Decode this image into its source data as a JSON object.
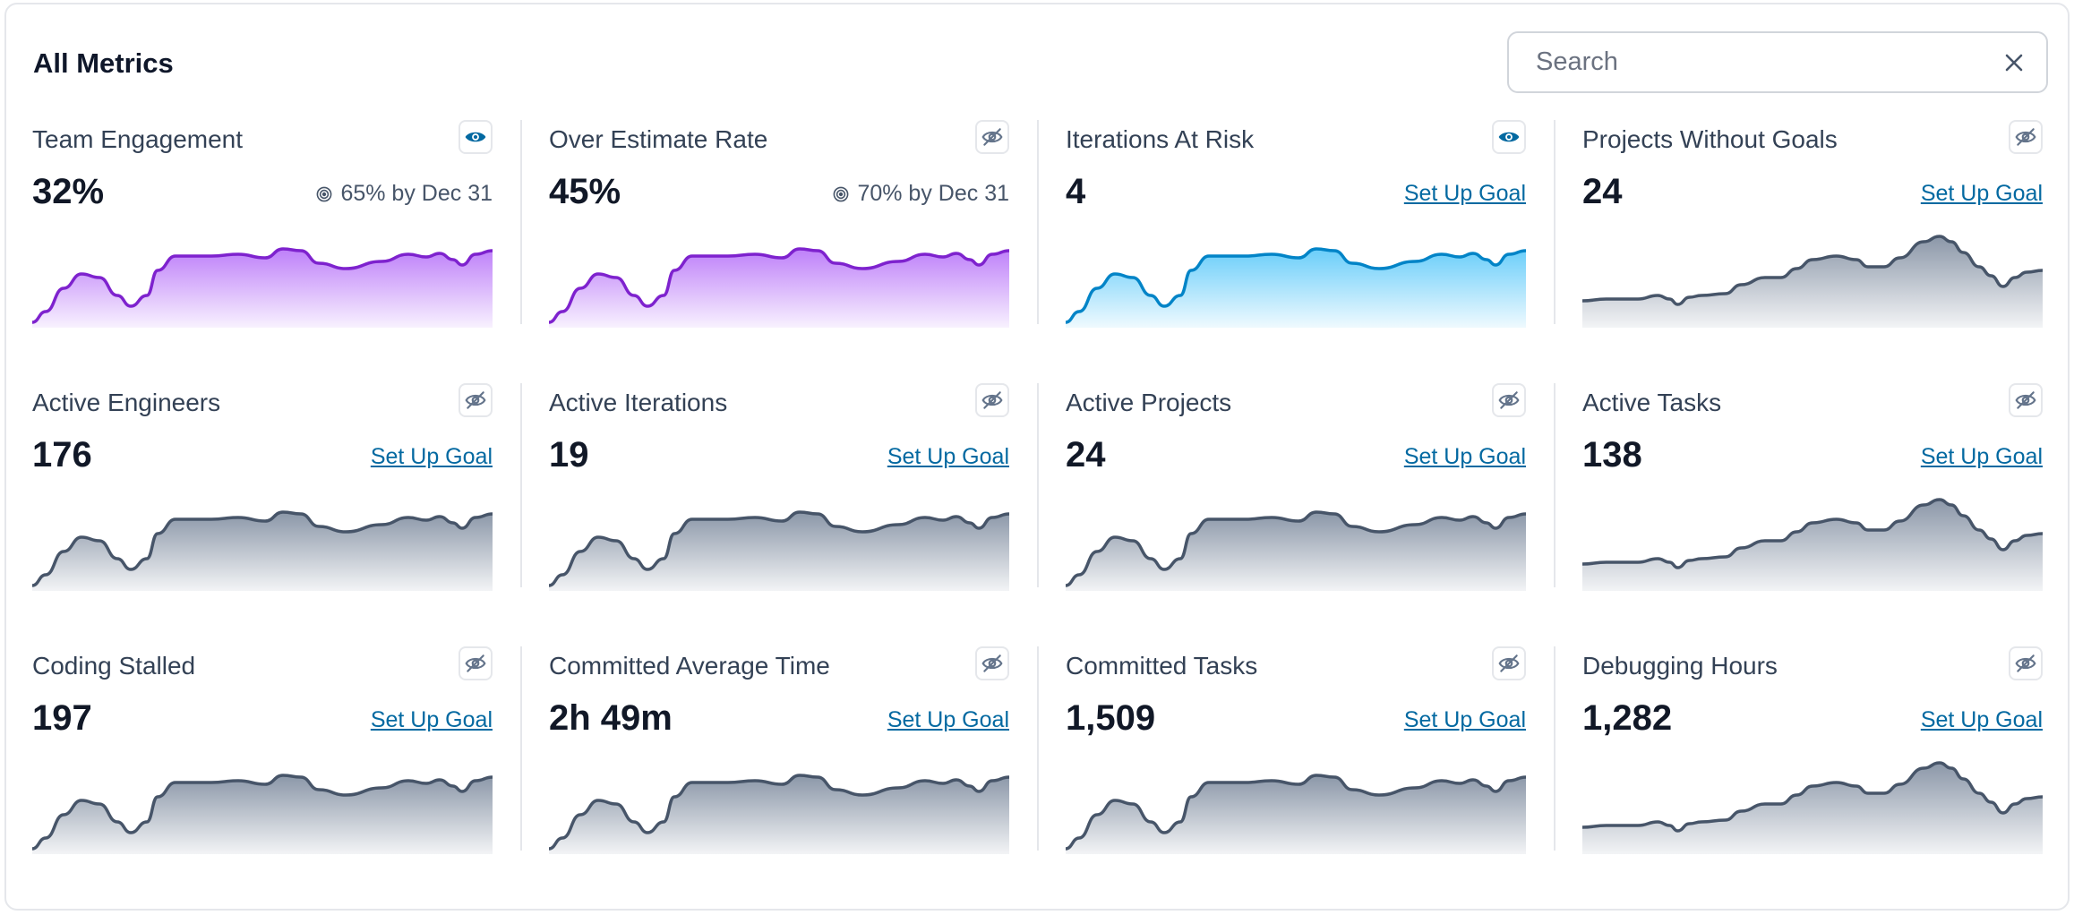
{
  "header": {
    "title": "All Metrics"
  },
  "search": {
    "placeholder": "Search"
  },
  "colors": {
    "purple": "#7e22ce",
    "purple_fill": "#a855f7",
    "blue": "#0284c7",
    "blue_fill": "#38bdf8",
    "gray": "#475569",
    "gray_fill": "#64748b",
    "link": "#0369a1",
    "eye_active": "#0369a1"
  },
  "metrics": [
    {
      "title": "Team Engagement",
      "value": "32%",
      "goal_text": "65% by Dec 31",
      "action_label": "",
      "visible": true,
      "series_style": "purple",
      "trend": "a"
    },
    {
      "title": "Over Estimate Rate",
      "value": "45%",
      "goal_text": "70% by Dec 31",
      "action_label": "",
      "visible": false,
      "series_style": "purple",
      "trend": "a"
    },
    {
      "title": "Iterations At Risk",
      "value": "4",
      "goal_text": "",
      "action_label": "Set Up Goal",
      "visible": true,
      "series_style": "blue",
      "trend": "a"
    },
    {
      "title": "Projects Without Goals",
      "value": "24",
      "goal_text": "",
      "action_label": "Set Up Goal",
      "visible": false,
      "series_style": "gray",
      "trend": "b"
    },
    {
      "title": "Active Engineers",
      "value": "176",
      "goal_text": "",
      "action_label": "Set Up Goal",
      "visible": false,
      "series_style": "gray",
      "trend": "a"
    },
    {
      "title": "Active Iterations",
      "value": "19",
      "goal_text": "",
      "action_label": "Set Up Goal",
      "visible": false,
      "series_style": "gray",
      "trend": "a"
    },
    {
      "title": "Active Projects",
      "value": "24",
      "goal_text": "",
      "action_label": "Set Up Goal",
      "visible": false,
      "series_style": "gray",
      "trend": "a"
    },
    {
      "title": "Active Tasks",
      "value": "138",
      "goal_text": "",
      "action_label": "Set Up Goal",
      "visible": false,
      "series_style": "gray",
      "trend": "b"
    },
    {
      "title": "Coding Stalled",
      "value": "197",
      "goal_text": "",
      "action_label": "Set Up Goal",
      "visible": false,
      "series_style": "gray",
      "trend": "a"
    },
    {
      "title": "Committed Average Time",
      "value": "2h 49m",
      "goal_text": "",
      "action_label": "Set Up Goal",
      "visible": false,
      "series_style": "gray",
      "trend": "a"
    },
    {
      "title": "Committed Tasks",
      "value": "1,509",
      "goal_text": "",
      "action_label": "Set Up Goal",
      "visible": false,
      "series_style": "gray",
      "trend": "a"
    },
    {
      "title": "Debugging Hours",
      "value": "1,282",
      "goal_text": "",
      "action_label": "Set Up Goal",
      "visible": false,
      "series_style": "gray",
      "trend": "b"
    }
  ]
}
